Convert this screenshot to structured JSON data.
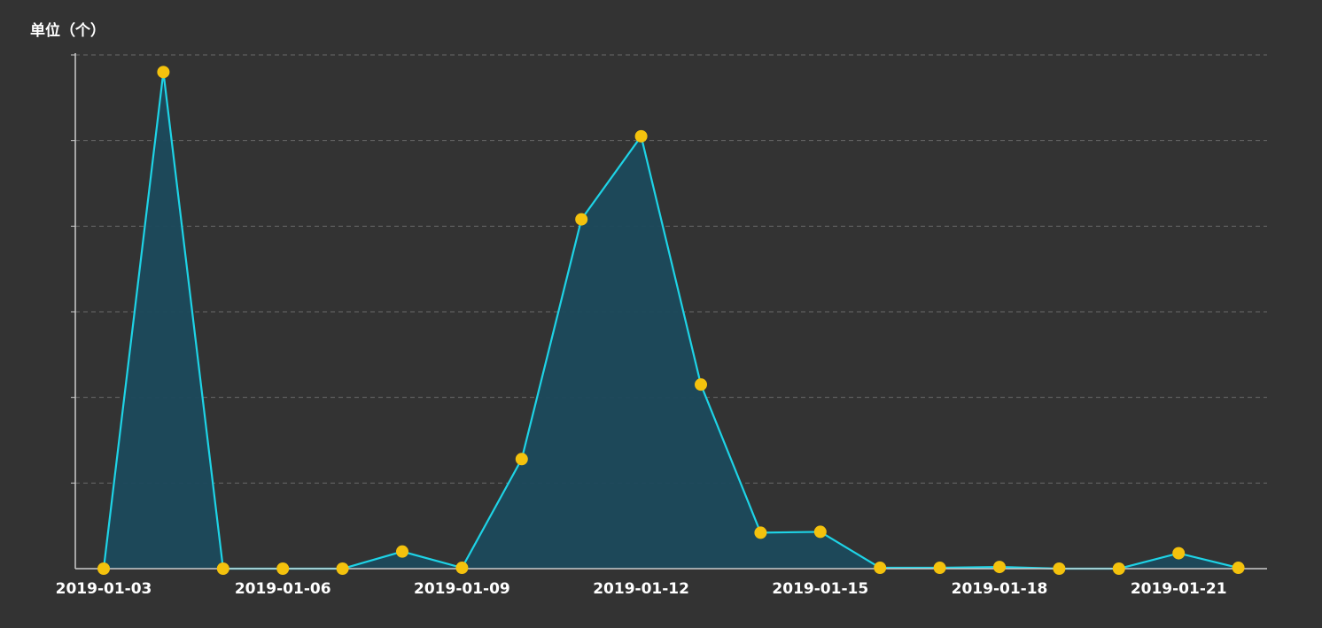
{
  "chart_data": {
    "type": "area",
    "unit_label": "单位（个）",
    "x": [
      "2019-01-03",
      "2019-01-04",
      "2019-01-05",
      "2019-01-06",
      "2019-01-07",
      "2019-01-08",
      "2019-01-09",
      "2019-01-10",
      "2019-01-11",
      "2019-01-12",
      "2019-01-13",
      "2019-01-14",
      "2019-01-15",
      "2019-01-16",
      "2019-01-17",
      "2019-01-18",
      "2019-01-19",
      "2019-01-20",
      "2019-01-21",
      "2019-01-22"
    ],
    "values": [
      0.0,
      5.8,
      0.0,
      0.0,
      0.0,
      0.2,
      0.01,
      1.28,
      4.08,
      5.05,
      2.15,
      0.42,
      0.43,
      0.01,
      0.01,
      0.02,
      0.0,
      0.0,
      0.18,
      0.01
    ],
    "x_tick_labels": [
      "2019-01-03",
      "2019-01-06",
      "2019-01-09",
      "2019-01-12",
      "2019-01-15",
      "2019-01-18",
      "2019-01-21"
    ],
    "ylim": [
      0,
      6
    ],
    "grid": "horizontal-dashed",
    "colors": {
      "background": "#333333",
      "line": "#1ed3e6",
      "area": "#1c4a5c",
      "point": "#f4c20d",
      "axis": "#cccccc",
      "grid": "#6a6a6a"
    }
  }
}
